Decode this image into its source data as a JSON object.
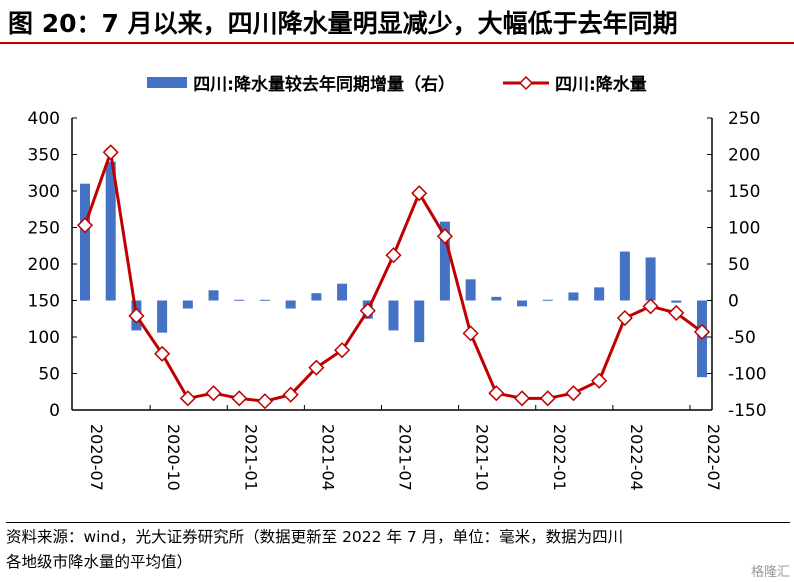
{
  "title": "图 20：7 月以来，四川降水量明显减少，大幅低于去年同期",
  "chart_data": {
    "type": "bar+line",
    "x": [
      "2020-07",
      "2020-08",
      "2020-09",
      "2020-10",
      "2020-11",
      "2020-12",
      "2021-01",
      "2021-02",
      "2021-03",
      "2021-04",
      "2021-05",
      "2021-06",
      "2021-07",
      "2021-08",
      "2021-09",
      "2021-10",
      "2021-11",
      "2021-12",
      "2022-01",
      "2022-02",
      "2022-03",
      "2022-04",
      "2022-05",
      "2022-06",
      "2022-07"
    ],
    "x_tick_labels": [
      "2020-07",
      "2020-10",
      "2021-01",
      "2021-04",
      "2021-07",
      "2021-10",
      "2022-01",
      "2022-04",
      "2022-07"
    ],
    "series": [
      {
        "name": "四川:降水量较去年同期增量（右）",
        "type": "bar",
        "axis": "right",
        "color": "#4472c4",
        "values": [
          160,
          190,
          -41,
          -44,
          -11,
          14,
          1,
          1,
          -11,
          10,
          23,
          -25,
          -41,
          -57,
          108,
          29,
          5,
          -8,
          1,
          11,
          18,
          67,
          59,
          -3,
          -105
        ]
      },
      {
        "name": "四川:降水量",
        "type": "line",
        "axis": "left",
        "color": "#c00000",
        "values": [
          253,
          353,
          129,
          77,
          16,
          23,
          16,
          12,
          21,
          58,
          82,
          136,
          212,
          297,
          238,
          105,
          23,
          16,
          16,
          23,
          40,
          126,
          142,
          133,
          107
        ]
      }
    ],
    "ylim_left": [
      0,
      400
    ],
    "yticks_left": [
      0,
      50,
      100,
      150,
      200,
      250,
      300,
      350,
      400
    ],
    "ylim_right": [
      -150,
      250
    ],
    "yticks_right": [
      -150,
      -100,
      -50,
      0,
      50,
      100,
      150,
      200,
      250
    ],
    "legend_position": "top"
  },
  "footer": {
    "line1": "资料来源：wind，光大证券研究所（数据更新至 2022 年 7 月，单位：毫米，数据为四川",
    "line2": "各地级市降水量的平均值）",
    "brand": "格隆汇"
  }
}
